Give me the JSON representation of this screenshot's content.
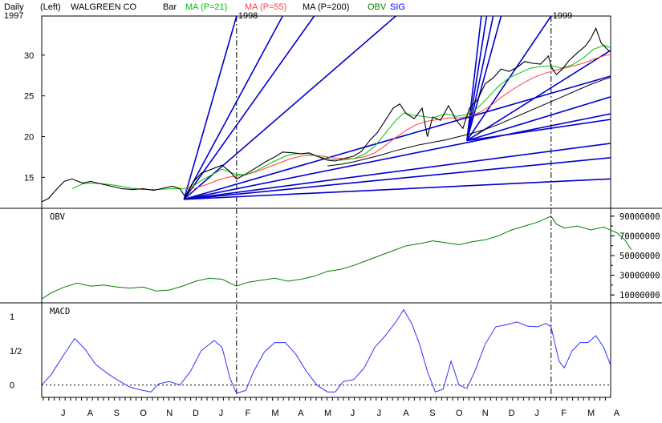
{
  "header": {
    "period": "Daily",
    "axis_side": "(Left)",
    "symbol_name": "WALGREEN CO",
    "chart_style": "Bar",
    "ma1_label": "MA (P=21)",
    "ma2_label": "MA (P=55)",
    "ma3_label": "MA (P=200)",
    "obv_label": "OBV",
    "sig_label": "SIG",
    "colors": {
      "ma1": "#00c000",
      "ma2": "#ff4040",
      "ma3": "#000000",
      "obv": "#008000",
      "sig": "#0000ff",
      "gann": "#0000cc",
      "macd": "#3030ff"
    }
  },
  "panels": {
    "obv_title": "OBV",
    "macd_title": "MACD"
  },
  "chart_data": [
    {
      "type": "line",
      "name": "price",
      "year_labels": [
        {
          "label": "1997",
          "month_index": 0
        },
        {
          "label": "1998",
          "month_index": 6.55
        },
        {
          "label": "1999",
          "month_index": 18.5
        }
      ],
      "x_labels": [
        "J",
        "A",
        "S",
        "O",
        "N",
        "D",
        "J",
        "F",
        "M",
        "A",
        "M",
        "J",
        "J",
        "A",
        "S",
        "O",
        "N",
        "D",
        "J",
        "F",
        "M",
        "A"
      ],
      "y_ticks": [
        15,
        20,
        25,
        30
      ],
      "ylim": [
        11.2,
        34.8
      ],
      "vertical_markers_month_index": [
        6.55,
        18.5
      ],
      "price_path": [
        [
          -0.85,
          12.0
        ],
        [
          -0.6,
          12.4
        ],
        [
          -0.3,
          13.5
        ],
        [
          0.0,
          14.5
        ],
        [
          0.3,
          14.8
        ],
        [
          0.7,
          14.3
        ],
        [
          1.0,
          14.5
        ],
        [
          1.4,
          14.2
        ],
        [
          1.8,
          13.9
        ],
        [
          2.2,
          13.6
        ],
        [
          2.6,
          13.5
        ],
        [
          3.0,
          13.6
        ],
        [
          3.4,
          13.4
        ],
        [
          3.8,
          13.7
        ],
        [
          4.1,
          13.9
        ],
        [
          4.4,
          13.6
        ],
        [
          4.6,
          12.6
        ],
        [
          4.9,
          14.4
        ],
        [
          5.2,
          15.5
        ],
        [
          5.6,
          16.0
        ],
        [
          6.0,
          16.5
        ],
        [
          6.3,
          15.7
        ],
        [
          6.55,
          14.8
        ],
        [
          6.9,
          15.4
        ],
        [
          7.3,
          16.2
        ],
        [
          7.7,
          17.0
        ],
        [
          8.0,
          17.5
        ],
        [
          8.3,
          18.1
        ],
        [
          8.7,
          18.0
        ],
        [
          9.0,
          17.9
        ],
        [
          9.3,
          18.0
        ],
        [
          9.6,
          17.6
        ],
        [
          10.0,
          17.1
        ],
        [
          10.3,
          17.0
        ],
        [
          10.6,
          17.3
        ],
        [
          11.0,
          17.6
        ],
        [
          11.3,
          18.2
        ],
        [
          11.6,
          19.5
        ],
        [
          11.9,
          20.5
        ],
        [
          12.2,
          22.0
        ],
        [
          12.5,
          23.5
        ],
        [
          12.75,
          24.0
        ],
        [
          13.0,
          22.8
        ],
        [
          13.3,
          22.2
        ],
        [
          13.6,
          23.5
        ],
        [
          13.8,
          20.0
        ],
        [
          14.0,
          22.4
        ],
        [
          14.3,
          22.0
        ],
        [
          14.6,
          23.8
        ],
        [
          14.9,
          22.0
        ],
        [
          15.15,
          21.0
        ],
        [
          15.4,
          23.5
        ],
        [
          15.7,
          24.5
        ],
        [
          16.0,
          26.5
        ],
        [
          16.3,
          27.2
        ],
        [
          16.6,
          28.3
        ],
        [
          16.9,
          28.0
        ],
        [
          17.2,
          28.5
        ],
        [
          17.5,
          29.2
        ],
        [
          17.8,
          29.0
        ],
        [
          18.1,
          28.9
        ],
        [
          18.4,
          29.9
        ],
        [
          18.5,
          28.6
        ],
        [
          18.7,
          27.6
        ],
        [
          18.9,
          28.2
        ],
        [
          19.2,
          29.4
        ],
        [
          19.5,
          30.3
        ],
        [
          19.8,
          31.1
        ],
        [
          20.0,
          32.0
        ],
        [
          20.2,
          33.3
        ],
        [
          20.4,
          31.5
        ],
        [
          20.7,
          30.5
        ],
        [
          21.0,
          30.2
        ],
        [
          21.3,
          28.8
        ],
        [
          21.55,
          27.8
        ]
      ],
      "ma21_path": [
        [
          0.3,
          13.6
        ],
        [
          0.7,
          14.2
        ],
        [
          1.0,
          14.3
        ],
        [
          1.5,
          14.2
        ],
        [
          2.0,
          14.0
        ],
        [
          2.5,
          13.7
        ],
        [
          3.0,
          13.5
        ],
        [
          3.5,
          13.5
        ],
        [
          4.0,
          13.6
        ],
        [
          4.5,
          13.6
        ],
        [
          4.9,
          13.9
        ],
        [
          5.2,
          14.6
        ],
        [
          5.6,
          15.3
        ],
        [
          6.0,
          16.0
        ],
        [
          6.5,
          15.4
        ],
        [
          6.9,
          15.3
        ],
        [
          7.3,
          15.8
        ],
        [
          7.7,
          16.5
        ],
        [
          8.0,
          17.0
        ],
        [
          8.4,
          17.6
        ],
        [
          8.8,
          17.9
        ],
        [
          9.3,
          17.9
        ],
        [
          9.7,
          17.5
        ],
        [
          10.1,
          17.2
        ],
        [
          10.5,
          17.1
        ],
        [
          11.0,
          17.3
        ],
        [
          11.4,
          17.8
        ],
        [
          11.8,
          18.8
        ],
        [
          12.2,
          20.4
        ],
        [
          12.6,
          22.0
        ],
        [
          12.9,
          22.9
        ],
        [
          13.3,
          22.6
        ],
        [
          13.6,
          22.5
        ],
        [
          14.0,
          22.3
        ],
        [
          14.5,
          22.8
        ],
        [
          14.9,
          22.5
        ],
        [
          15.3,
          22.7
        ],
        [
          15.7,
          23.5
        ],
        [
          16.1,
          24.8
        ],
        [
          16.5,
          26.2
        ],
        [
          16.9,
          27.2
        ],
        [
          17.3,
          27.8
        ],
        [
          17.7,
          28.4
        ],
        [
          18.1,
          28.6
        ],
        [
          18.5,
          28.7
        ],
        [
          18.9,
          28.4
        ],
        [
          19.3,
          28.8
        ],
        [
          19.7,
          29.6
        ],
        [
          20.1,
          30.7
        ],
        [
          20.5,
          31.2
        ],
        [
          20.9,
          30.8
        ],
        [
          21.3,
          30.0
        ],
        [
          21.55,
          29.5
        ]
      ],
      "ma55_path": [
        [
          4.6,
          13.5
        ],
        [
          5.0,
          13.7
        ],
        [
          5.4,
          14.1
        ],
        [
          5.8,
          14.6
        ],
        [
          6.2,
          15.0
        ],
        [
          6.6,
          15.2
        ],
        [
          7.0,
          15.4
        ],
        [
          7.4,
          15.8
        ],
        [
          7.8,
          16.3
        ],
        [
          8.2,
          16.8
        ],
        [
          8.6,
          17.3
        ],
        [
          9.0,
          17.6
        ],
        [
          9.4,
          17.7
        ],
        [
          9.8,
          17.6
        ],
        [
          10.2,
          17.4
        ],
        [
          10.6,
          17.3
        ],
        [
          11.0,
          17.3
        ],
        [
          11.4,
          17.5
        ],
        [
          11.8,
          18.0
        ],
        [
          12.2,
          18.9
        ],
        [
          12.6,
          19.9
        ],
        [
          13.0,
          20.8
        ],
        [
          13.4,
          21.5
        ],
        [
          13.8,
          21.9
        ],
        [
          14.2,
          22.1
        ],
        [
          14.6,
          22.3
        ],
        [
          15.0,
          22.3
        ],
        [
          15.4,
          22.5
        ],
        [
          15.8,
          23.0
        ],
        [
          16.2,
          23.8
        ],
        [
          16.6,
          24.8
        ],
        [
          17.0,
          25.7
        ],
        [
          17.4,
          26.5
        ],
        [
          17.8,
          27.2
        ],
        [
          18.2,
          27.7
        ],
        [
          18.6,
          28.1
        ],
        [
          19.0,
          28.4
        ],
        [
          19.4,
          28.7
        ],
        [
          19.8,
          29.1
        ],
        [
          20.2,
          29.6
        ],
        [
          20.6,
          30.0
        ],
        [
          21.0,
          30.1
        ],
        [
          21.55,
          30.0
        ]
      ],
      "ma200_path": [
        [
          10.0,
          16.4
        ],
        [
          10.5,
          16.6
        ],
        [
          11.0,
          16.9
        ],
        [
          11.5,
          17.3
        ],
        [
          12.0,
          17.7
        ],
        [
          12.5,
          18.2
        ],
        [
          13.0,
          18.6
        ],
        [
          13.5,
          19.0
        ],
        [
          14.0,
          19.3
        ],
        [
          14.5,
          19.6
        ],
        [
          15.0,
          20.0
        ],
        [
          15.5,
          20.4
        ],
        [
          16.0,
          20.9
        ],
        [
          16.5,
          21.5
        ],
        [
          17.0,
          22.2
        ],
        [
          17.5,
          22.9
        ],
        [
          18.0,
          23.6
        ],
        [
          18.5,
          24.3
        ],
        [
          19.0,
          25.0
        ],
        [
          19.5,
          25.7
        ],
        [
          20.0,
          26.4
        ],
        [
          20.5,
          27.0
        ],
        [
          21.0,
          27.5
        ],
        [
          21.55,
          27.9
        ]
      ],
      "gann_fans": [
        {
          "origin": [
            4.55,
            12.3
          ],
          "targets": [
            [
              6.55,
              34.8
            ],
            [
              8.3,
              34.8
            ],
            [
              9.5,
              34.8
            ],
            [
              12.6,
              34.8
            ],
            [
              21.8,
              28.4
            ],
            [
              22.0,
              23.6
            ],
            [
              22.0,
              19.7
            ],
            [
              22.0,
              17.8
            ],
            [
              22.0,
              15.0
            ]
          ]
        },
        {
          "origin": [
            15.3,
            19.5
          ],
          "targets": [
            [
              15.85,
              34.8
            ],
            [
              16.05,
              34.8
            ],
            [
              16.3,
              34.8
            ],
            [
              16.6,
              34.8
            ],
            [
              18.5,
              34.8
            ],
            [
              22.0,
              33.1
            ],
            [
              22.0,
              26.1
            ],
            [
              22.0,
              22.7
            ]
          ]
        }
      ]
    },
    {
      "type": "line",
      "name": "OBV",
      "y_ticks": [
        "90000000",
        "70000000",
        "50000000",
        "30000000",
        "10000000"
      ],
      "y_tick_values": [
        90000000,
        70000000,
        50000000,
        30000000,
        10000000
      ],
      "ylim": [
        2000000,
        98000000
      ],
      "path": [
        [
          -0.85,
          6000000
        ],
        [
          -0.5,
          12000000
        ],
        [
          0.0,
          18000000
        ],
        [
          0.5,
          22000000
        ],
        [
          1.0,
          19000000
        ],
        [
          1.5,
          20000000
        ],
        [
          2.0,
          18000000
        ],
        [
          2.5,
          17000000
        ],
        [
          3.0,
          18000000
        ],
        [
          3.5,
          14000000
        ],
        [
          4.0,
          15000000
        ],
        [
          4.5,
          19000000
        ],
        [
          5.0,
          24000000
        ],
        [
          5.5,
          27000000
        ],
        [
          6.0,
          26000000
        ],
        [
          6.3,
          22000000
        ],
        [
          6.55,
          19000000
        ],
        [
          7.0,
          23000000
        ],
        [
          7.5,
          25000000
        ],
        [
          8.0,
          27000000
        ],
        [
          8.5,
          24000000
        ],
        [
          9.0,
          26000000
        ],
        [
          9.5,
          29000000
        ],
        [
          10.0,
          34000000
        ],
        [
          10.5,
          36000000
        ],
        [
          11.0,
          40000000
        ],
        [
          11.5,
          45000000
        ],
        [
          12.0,
          50000000
        ],
        [
          12.5,
          55000000
        ],
        [
          13.0,
          60000000
        ],
        [
          13.5,
          62000000
        ],
        [
          14.0,
          65000000
        ],
        [
          14.5,
          63000000
        ],
        [
          15.0,
          61000000
        ],
        [
          15.5,
          64000000
        ],
        [
          16.0,
          66000000
        ],
        [
          16.5,
          70000000
        ],
        [
          17.0,
          76000000
        ],
        [
          17.5,
          80000000
        ],
        [
          18.0,
          84000000
        ],
        [
          18.5,
          90000000
        ],
        [
          18.7,
          82000000
        ],
        [
          19.0,
          78000000
        ],
        [
          19.5,
          80000000
        ],
        [
          20.0,
          76000000
        ],
        [
          20.5,
          79000000
        ],
        [
          21.0,
          73000000
        ],
        [
          21.3,
          66000000
        ],
        [
          21.55,
          56000000
        ]
      ]
    },
    {
      "type": "line",
      "name": "MACD",
      "y_ticks": [
        "1",
        "1/2",
        "0"
      ],
      "y_tick_values": [
        1,
        0.5,
        0
      ],
      "ylim": [
        -0.18,
        1.2
      ],
      "zero_line": 0,
      "path": [
        [
          -0.85,
          0.0
        ],
        [
          -0.5,
          0.15
        ],
        [
          0.0,
          0.45
        ],
        [
          0.4,
          0.68
        ],
        [
          0.8,
          0.52
        ],
        [
          1.2,
          0.3
        ],
        [
          1.6,
          0.18
        ],
        [
          2.0,
          0.08
        ],
        [
          2.5,
          -0.03
        ],
        [
          3.0,
          -0.08
        ],
        [
          3.3,
          -0.1
        ],
        [
          3.6,
          0.02
        ],
        [
          4.0,
          0.05
        ],
        [
          4.4,
          0.0
        ],
        [
          4.8,
          0.2
        ],
        [
          5.2,
          0.5
        ],
        [
          5.7,
          0.65
        ],
        [
          6.0,
          0.55
        ],
        [
          6.3,
          0.1
        ],
        [
          6.55,
          -0.12
        ],
        [
          6.9,
          -0.08
        ],
        [
          7.2,
          0.2
        ],
        [
          7.6,
          0.48
        ],
        [
          8.0,
          0.62
        ],
        [
          8.4,
          0.62
        ],
        [
          8.8,
          0.45
        ],
        [
          9.2,
          0.2
        ],
        [
          9.6,
          0.0
        ],
        [
          10.0,
          -0.1
        ],
        [
          10.3,
          -0.1
        ],
        [
          10.6,
          0.05
        ],
        [
          11.0,
          0.08
        ],
        [
          11.4,
          0.25
        ],
        [
          11.8,
          0.55
        ],
        [
          12.2,
          0.72
        ],
        [
          12.6,
          0.92
        ],
        [
          12.9,
          1.1
        ],
        [
          13.2,
          0.9
        ],
        [
          13.5,
          0.6
        ],
        [
          13.8,
          0.2
        ],
        [
          14.1,
          -0.1
        ],
        [
          14.4,
          -0.06
        ],
        [
          14.7,
          0.35
        ],
        [
          15.0,
          0.0
        ],
        [
          15.3,
          -0.05
        ],
        [
          15.6,
          0.2
        ],
        [
          16.0,
          0.6
        ],
        [
          16.4,
          0.85
        ],
        [
          16.8,
          0.88
        ],
        [
          17.2,
          0.92
        ],
        [
          17.6,
          0.86
        ],
        [
          18.0,
          0.85
        ],
        [
          18.3,
          0.9
        ],
        [
          18.5,
          0.85
        ],
        [
          18.8,
          0.35
        ],
        [
          19.0,
          0.25
        ],
        [
          19.3,
          0.5
        ],
        [
          19.6,
          0.62
        ],
        [
          19.9,
          0.62
        ],
        [
          20.2,
          0.72
        ],
        [
          20.5,
          0.55
        ],
        [
          20.8,
          0.25
        ],
        [
          21.1,
          0.0
        ],
        [
          21.35,
          -0.1
        ],
        [
          21.55,
          -0.18
        ]
      ]
    }
  ]
}
